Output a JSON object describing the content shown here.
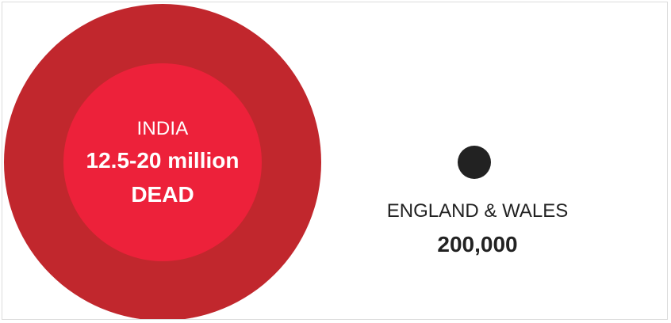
{
  "india": {
    "label": "INDIA",
    "value": "12.5-20 million",
    "unit": "DEAD"
  },
  "england_wales": {
    "label": "ENGLAND & WALES",
    "value": "200,000"
  },
  "colors": {
    "outer_circle": "#c1272d",
    "inner_circle": "#ed213a",
    "dot": "#222222",
    "text_dark": "#222222",
    "text_light": "#ffffff"
  }
}
